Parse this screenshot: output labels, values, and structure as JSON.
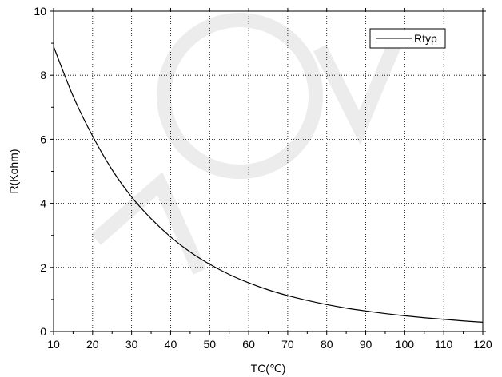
{
  "chart_data": {
    "type": "line",
    "title": "",
    "xlabel": "TC(℃)",
    "ylabel": "R(Kohm)",
    "xlim": [
      10,
      120
    ],
    "ylim": [
      0,
      10
    ],
    "x_ticks": [
      10,
      20,
      30,
      40,
      50,
      60,
      70,
      80,
      90,
      100,
      110,
      120
    ],
    "y_ticks": [
      0,
      2,
      4,
      6,
      8,
      10
    ],
    "grid": true,
    "legend_position": "top-right",
    "series": [
      {
        "name": "Rtyp",
        "color": "#000000",
        "x": [
          10,
          15,
          20,
          25,
          30,
          35,
          40,
          45,
          50,
          55,
          60,
          65,
          70,
          75,
          80,
          85,
          90,
          95,
          100,
          105,
          110,
          115,
          120
        ],
        "y": [
          8.9,
          7.35,
          6.1,
          5.05,
          4.2,
          3.52,
          2.95,
          2.48,
          2.1,
          1.78,
          1.52,
          1.3,
          1.12,
          0.97,
          0.84,
          0.73,
          0.64,
          0.56,
          0.49,
          0.43,
          0.38,
          0.33,
          0.29
        ]
      }
    ]
  }
}
